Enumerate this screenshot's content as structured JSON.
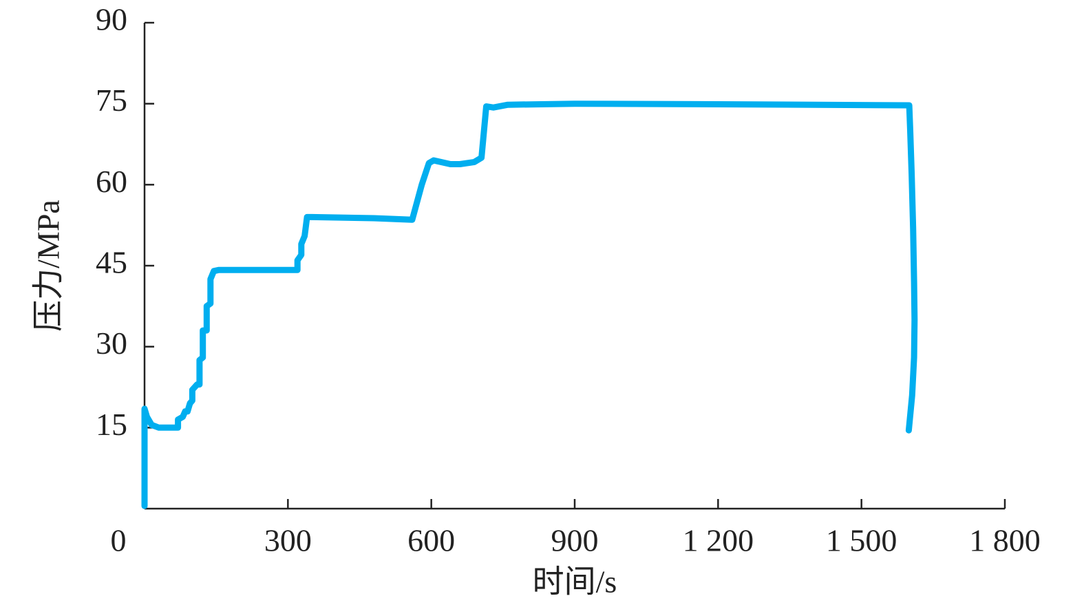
{
  "chart_data": {
    "type": "line",
    "x_label": "时间/s",
    "y_label": "压力/MPa",
    "xlim": [
      0,
      1800
    ],
    "ylim": [
      0,
      90
    ],
    "xticks": [
      0,
      300,
      600,
      900,
      {
        "value": 1200,
        "label": "1 200"
      },
      {
        "value": 1500,
        "label": "1 500"
      },
      {
        "value": 1800,
        "label": "1 800"
      }
    ],
    "yticks": [
      15,
      30,
      45,
      60,
      75,
      90
    ],
    "series": [
      {
        "color": "#00aeef",
        "x": [
          0,
          0,
          5,
          15,
          30,
          70,
          70,
          80,
          85,
          90,
          95,
          100,
          100,
          110,
          115,
          115,
          122,
          122,
          130,
          130,
          138,
          138,
          145,
          155,
          320,
          320,
          328,
          328,
          335,
          340,
          350,
          480,
          560,
          580,
          595,
          605,
          640,
          660,
          690,
          705,
          715,
          730,
          760,
          900,
          1200,
          1600,
          1602,
          1605,
          1608,
          1610,
          1611,
          1610,
          1606,
          1599
        ],
        "values": [
          0.5,
          18.5,
          17,
          15.5,
          15,
          15,
          16.5,
          17,
          18,
          18,
          19.5,
          20,
          22,
          23,
          23,
          27.5,
          28,
          33,
          33,
          37.5,
          38,
          42.5,
          44,
          44.2,
          44.2,
          46,
          47,
          49,
          50.5,
          54,
          54,
          53.8,
          53.5,
          60,
          64,
          64.5,
          63.8,
          63.8,
          64.2,
          65,
          74.5,
          74.3,
          74.8,
          75,
          74.9,
          74.7,
          70,
          62,
          52,
          42,
          35,
          28,
          21,
          14.5
        ]
      }
    ]
  }
}
